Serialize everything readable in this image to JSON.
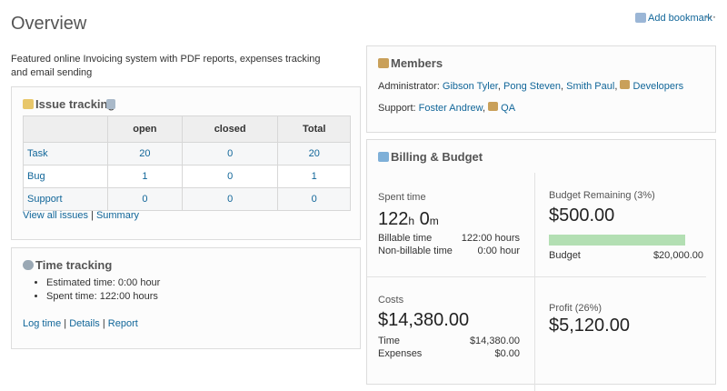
{
  "header": {
    "title": "Overview",
    "bookmark": "Add bookmark",
    "more": "···"
  },
  "description": "Featured online Invoicing system with PDF reports, expenses tracking and email sending",
  "issue_tracking": {
    "title": "Issue tracking",
    "columns": [
      "open",
      "closed",
      "Total"
    ],
    "rows": [
      {
        "tracker": "Task",
        "values": [
          20,
          0,
          20
        ]
      },
      {
        "tracker": "Bug",
        "values": [
          1,
          0,
          1
        ]
      },
      {
        "tracker": "Support",
        "values": [
          0,
          0,
          0
        ]
      }
    ],
    "links": [
      "View all issues",
      "Summary"
    ]
  },
  "separator": "|",
  "comma": ",",
  "time_tracking": {
    "title": "Time tracking",
    "items": [
      "Estimated time: 0:00 hour",
      "Spent time: 122:00 hours"
    ],
    "links": [
      "Log time",
      "Details",
      "Report"
    ]
  },
  "members": {
    "title": "Members",
    "roles": [
      {
        "role": "Administrator:",
        "users": [
          "Gibson Tyler",
          "Pong Steven",
          "Smith Paul"
        ],
        "group": "Developers"
      },
      {
        "role": "Support:",
        "users": [
          "Foster Andrew"
        ],
        "group": "QA"
      }
    ]
  },
  "billing": {
    "title": "Billing & Budget",
    "spent": {
      "label": "Spent time",
      "hours": 122,
      "hours_unit": "h",
      "minutes": 0,
      "minutes_unit": "m",
      "rows": [
        {
          "label": "Billable time",
          "value": "122:00 hours"
        },
        {
          "label": "Non-billable time",
          "value": "0:00 hour"
        }
      ]
    },
    "budget": {
      "label": "Budget Remaining (3%)",
      "amount": "$500.00",
      "row": {
        "label": "Budget",
        "value": "$20,000.00"
      }
    },
    "costs": {
      "label": "Costs",
      "amount": "$14,380.00",
      "rows": [
        {
          "label": "Time",
          "value": "$14,380.00"
        },
        {
          "label": "Expenses",
          "value": "$0.00"
        }
      ]
    },
    "profit": {
      "label": "Profit (26%)",
      "amount": "$5,120.00"
    }
  }
}
